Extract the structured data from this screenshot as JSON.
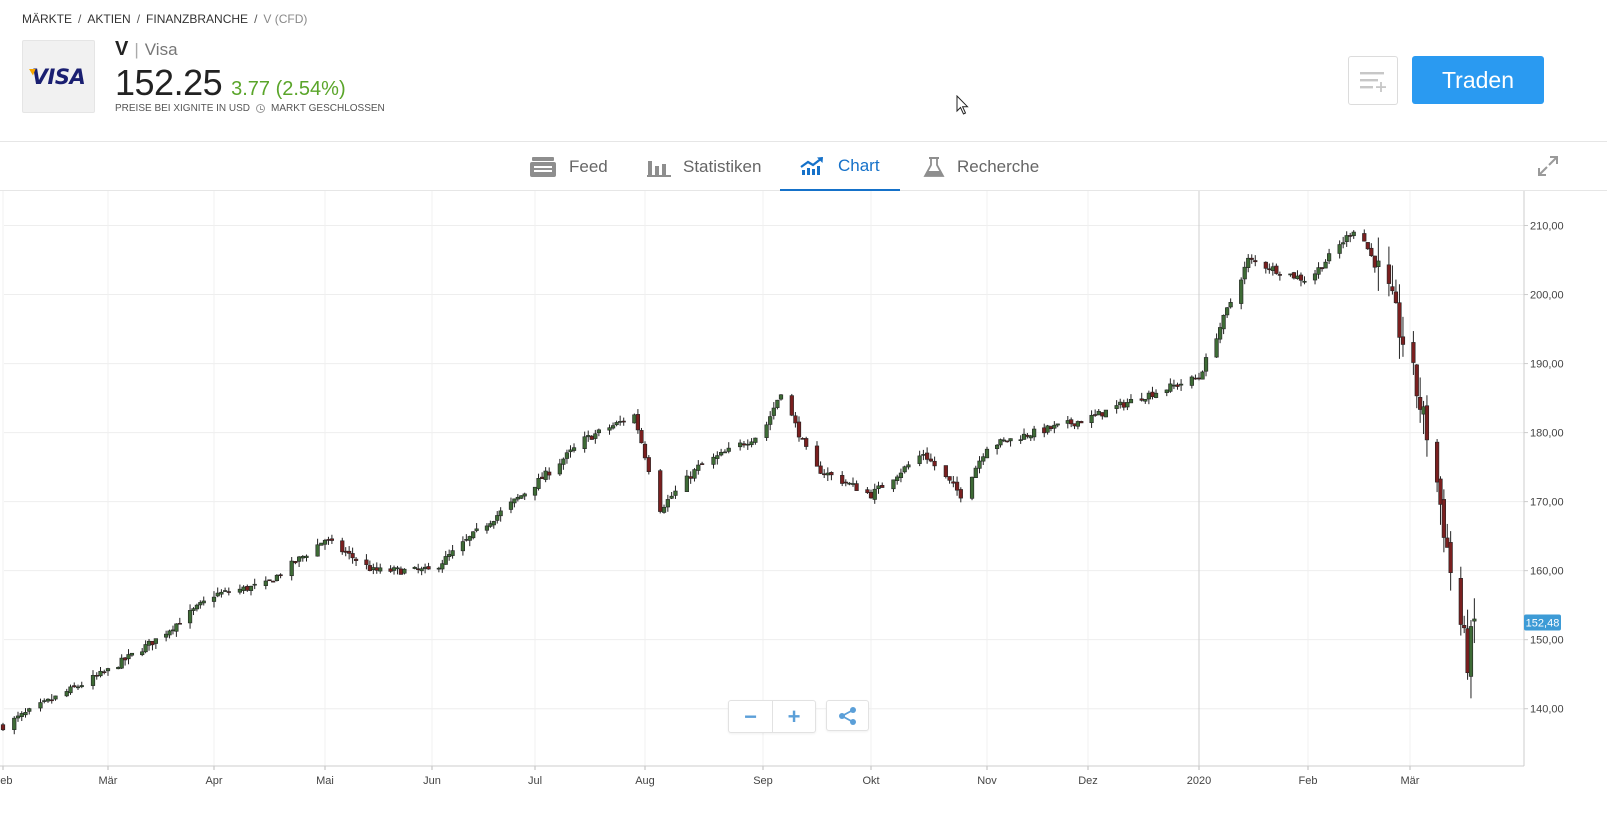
{
  "breadcrumb": {
    "items": [
      "MÄRKTE",
      "AKTIEN",
      "FINANZBRANCHE"
    ],
    "separator": "/",
    "current": "V (CFD)"
  },
  "instrument": {
    "logo_text": "VISA",
    "ticker": "V",
    "separator": "|",
    "name": "Visa",
    "price": "152.25",
    "change": "3.77 (2.54%)",
    "price_source": "PREISE BEI XIGNITE IN USD",
    "market_status": "MARKT GESCHLOSSEN"
  },
  "actions": {
    "trade_label": "Traden",
    "watchlist_icon": "add-to-list-icon"
  },
  "tabs": [
    {
      "label": "Feed",
      "icon": "feed-icon",
      "active": false
    },
    {
      "label": "Statistiken",
      "icon": "bar-chart-icon",
      "active": false
    },
    {
      "label": "Chart",
      "icon": "line-chart-icon",
      "active": true
    },
    {
      "label": "Recherche",
      "icon": "flask-icon",
      "active": false
    }
  ],
  "colors": {
    "accent": "#1571c9",
    "trade_button": "#2a9af1",
    "positive": "#5aa52a",
    "candle_up": "#3e6b36",
    "candle_down": "#7a1f1f",
    "last_price_tag": "#3d9bd6"
  },
  "chart_data": {
    "type": "candlestick",
    "y_tick_labels": [
      "140,00",
      "150,00",
      "160,00",
      "170,00",
      "180,00",
      "190,00",
      "200,00",
      "210,00"
    ],
    "y_ticks": [
      140,
      150,
      160,
      170,
      180,
      190,
      200,
      210
    ],
    "ylim": [
      131.7,
      215
    ],
    "x_tick_labels": [
      "Feb",
      "Mär",
      "Apr",
      "Mai",
      "Jun",
      "Jul",
      "Aug",
      "Sep",
      "Okt",
      "Nov",
      "Dez",
      "2020",
      "Feb",
      "Mär"
    ],
    "x_tick_dates": [
      "2019-02-01",
      "2019-03-01",
      "2019-04-01",
      "2019-05-01",
      "2019-06-01",
      "2019-07-01",
      "2019-08-01",
      "2019-09-01",
      "2019-10-01",
      "2019-11-01",
      "2019-12-01",
      "2020-01-01",
      "2020-02-01",
      "2020-03-01"
    ],
    "last_price_label": "152,48",
    "last_price": 152.48,
    "grid": true,
    "closes": [
      {
        "date": "2019-02-01",
        "close": 137.5
      },
      {
        "date": "2019-02-15",
        "close": 141.6
      },
      {
        "date": "2019-03-01",
        "close": 145.5
      },
      {
        "date": "2019-03-15",
        "close": 150.0
      },
      {
        "date": "2019-04-01",
        "close": 156.5
      },
      {
        "date": "2019-04-15",
        "close": 158.0
      },
      {
        "date": "2019-05-01",
        "close": 164.5
      },
      {
        "date": "2019-05-15",
        "close": 160.0
      },
      {
        "date": "2019-06-01",
        "close": 160.0
      },
      {
        "date": "2019-06-15",
        "close": 166.0
      },
      {
        "date": "2019-07-01",
        "close": 172.5
      },
      {
        "date": "2019-07-15",
        "close": 179.0
      },
      {
        "date": "2019-07-29",
        "close": 182.5
      },
      {
        "date": "2019-08-05",
        "close": 169.0
      },
      {
        "date": "2019-08-15",
        "close": 175.0
      },
      {
        "date": "2019-09-01",
        "close": 180.0
      },
      {
        "date": "2019-09-06",
        "close": 186.0
      },
      {
        "date": "2019-09-15",
        "close": 175.0
      },
      {
        "date": "2019-10-01",
        "close": 171.0
      },
      {
        "date": "2019-10-15",
        "close": 177.0
      },
      {
        "date": "2019-10-25",
        "close": 171.0
      },
      {
        "date": "2019-11-01",
        "close": 178.0
      },
      {
        "date": "2019-11-15",
        "close": 180.0
      },
      {
        "date": "2019-12-01",
        "close": 182.0
      },
      {
        "date": "2019-12-15",
        "close": 185.0
      },
      {
        "date": "2020-01-01",
        "close": 188.0
      },
      {
        "date": "2020-01-15",
        "close": 205.0
      },
      {
        "date": "2020-02-01",
        "close": 202.0
      },
      {
        "date": "2020-02-15",
        "close": 210.0
      },
      {
        "date": "2020-02-24",
        "close": 200.0
      },
      {
        "date": "2020-03-01",
        "close": 190.0
      },
      {
        "date": "2020-03-08",
        "close": 176.0
      },
      {
        "date": "2020-03-13",
        "close": 160.0
      },
      {
        "date": "2020-03-18",
        "close": 147.0
      },
      {
        "date": "2020-03-20",
        "close": 152.48
      }
    ]
  },
  "chart_controls": {
    "zoom_out_label": "−",
    "zoom_in_label": "+",
    "share_icon": "share-icon"
  }
}
